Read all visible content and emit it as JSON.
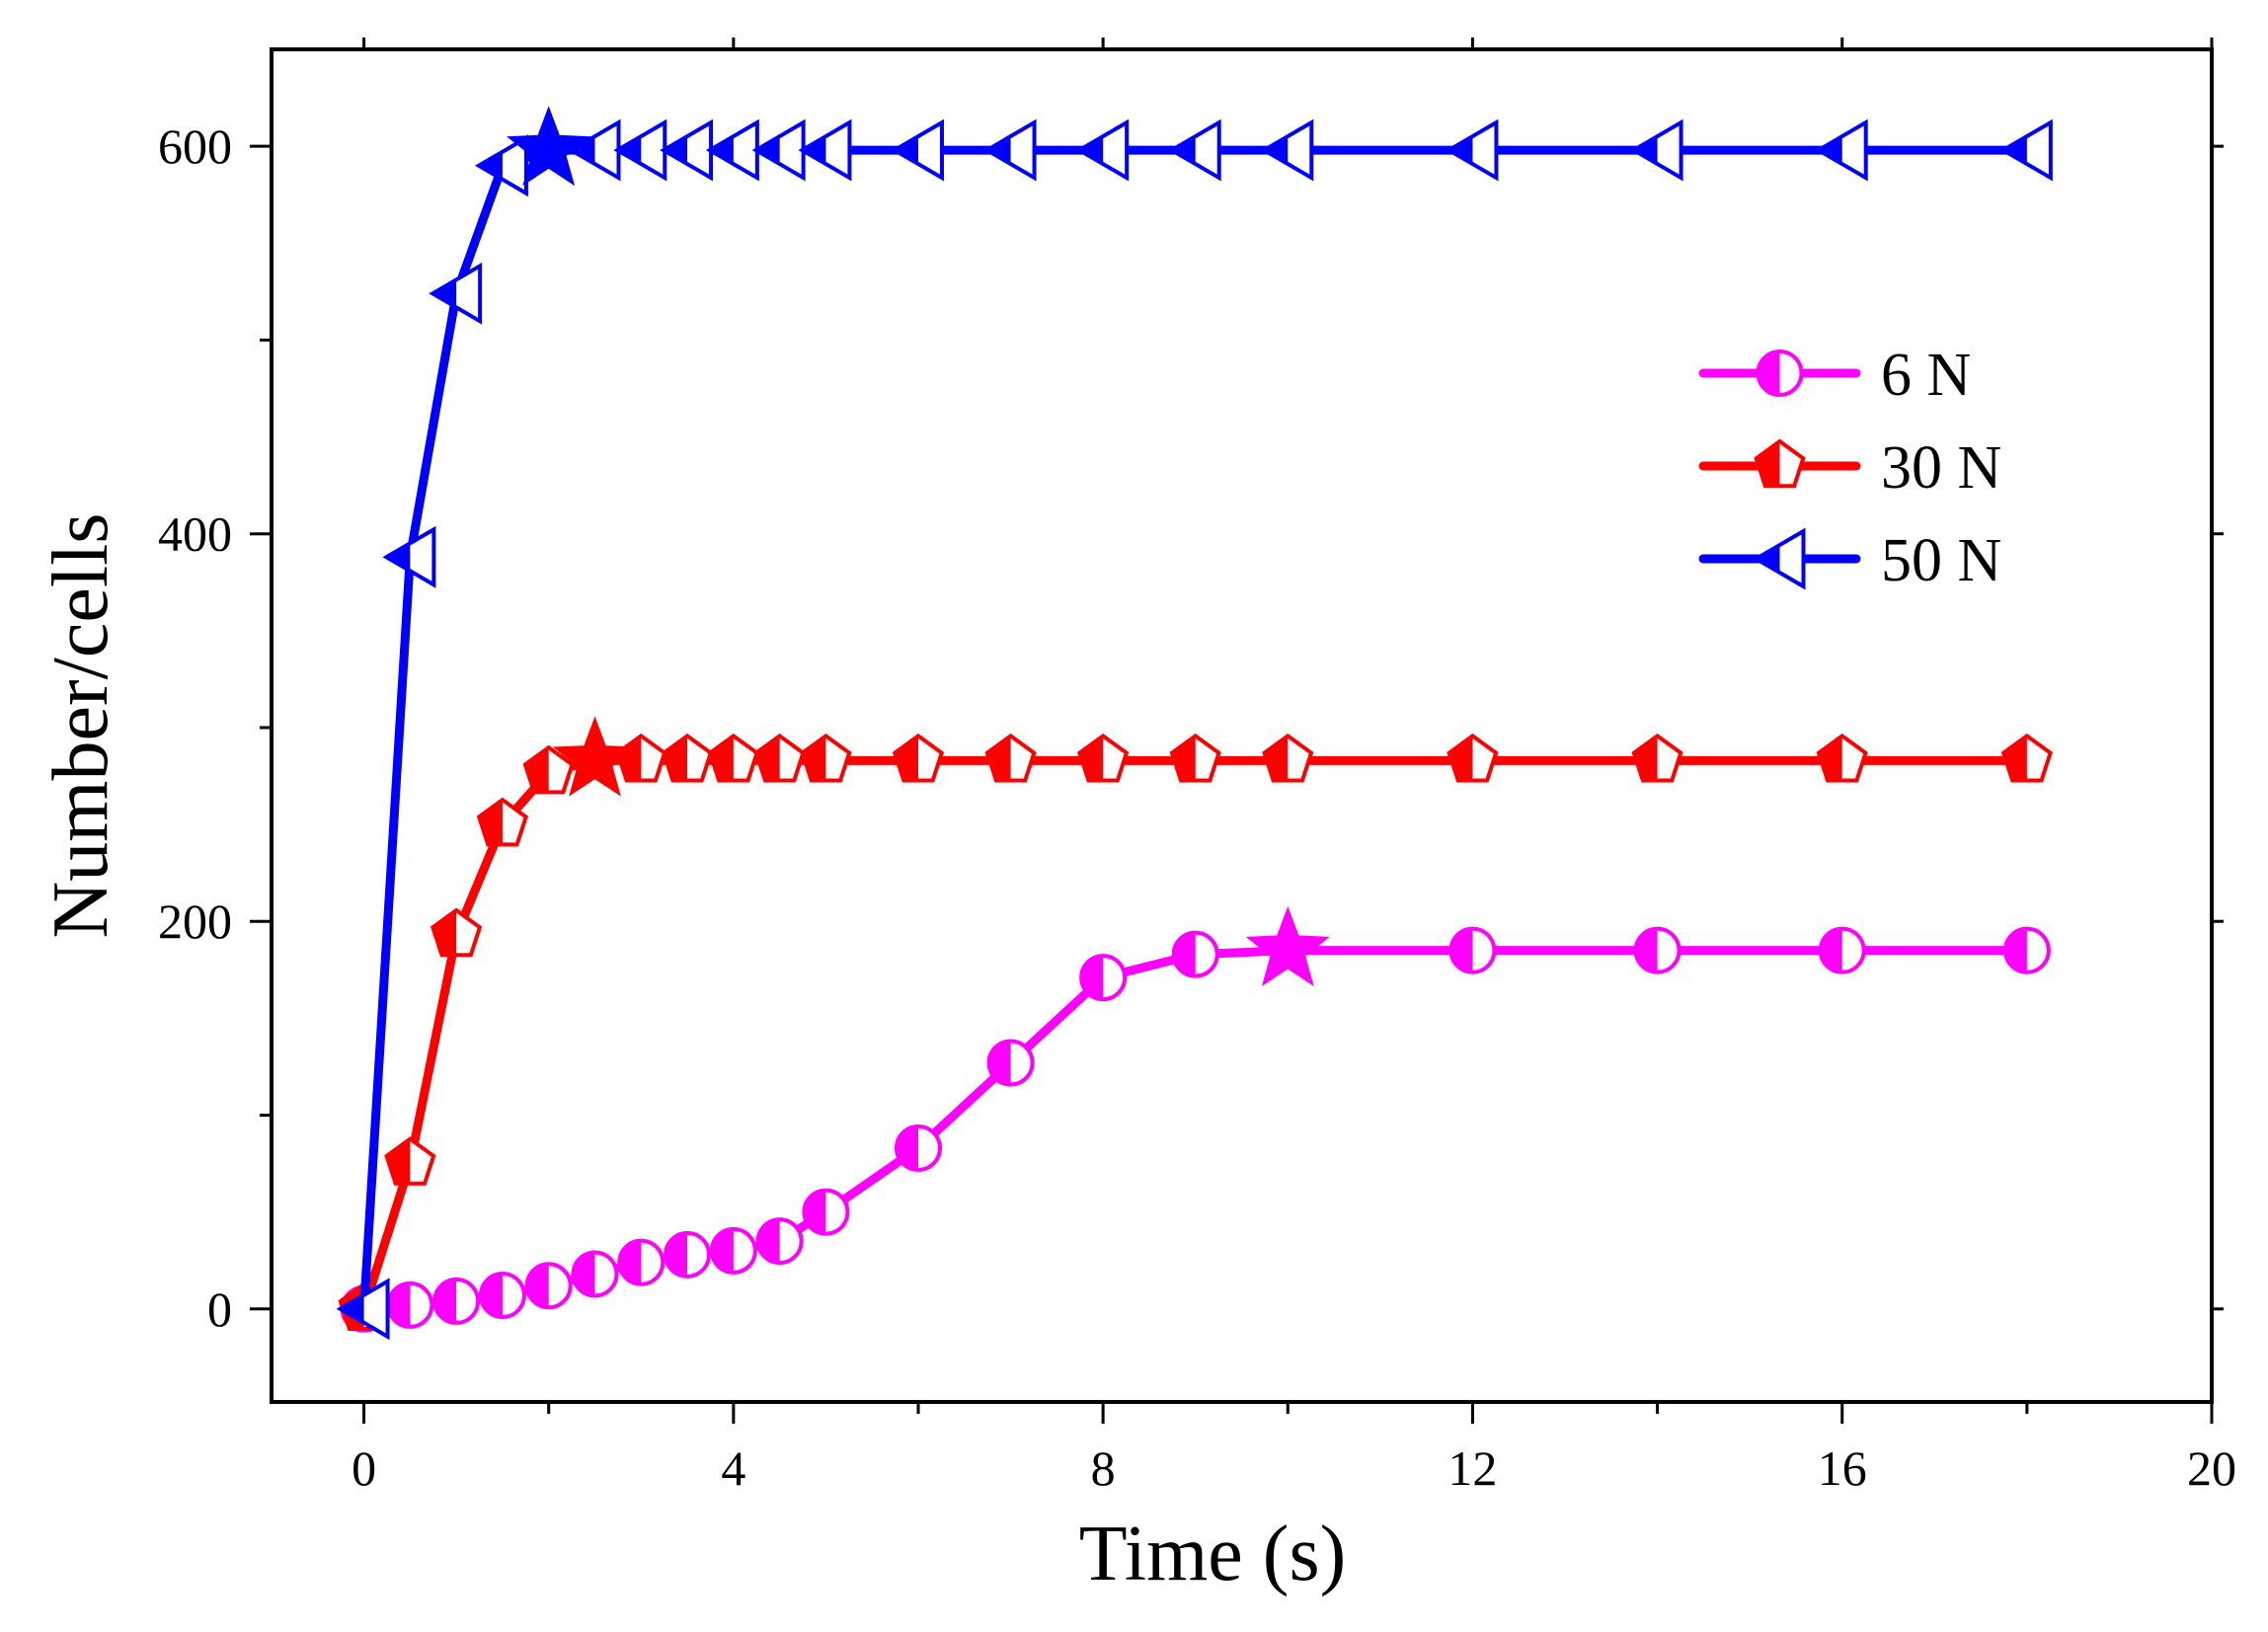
{
  "chart_data": {
    "type": "line",
    "title": "",
    "xlabel": "Time (s)",
    "ylabel": "Number/cells",
    "xlim": [
      -1.0,
      20
    ],
    "ylim": [
      -48,
      650
    ],
    "xticks": [
      0,
      4,
      8,
      12,
      16,
      20
    ],
    "yticks": [
      0,
      200,
      400,
      600
    ],
    "x_tick_labels": [
      "0",
      "4",
      "8",
      "12",
      "16",
      "20"
    ],
    "y_tick_labels": [
      "0",
      "200",
      "400",
      "600"
    ],
    "grid": false,
    "legend_position": "right-upper",
    "series": [
      {
        "name": "6 N",
        "color": "#ff00ff",
        "marker": "half-circle",
        "x": [
          0,
          0.5,
          1,
          1.5,
          2,
          2.5,
          3,
          3.5,
          4,
          4.5,
          5,
          6,
          7,
          8,
          9,
          10,
          12,
          14,
          16,
          18
        ],
        "y": [
          0,
          2,
          4,
          7,
          12,
          18,
          24,
          28,
          30,
          35,
          50,
          83,
          127,
          171,
          183,
          185,
          185,
          185,
          185,
          185
        ],
        "star_at_x": 10
      },
      {
        "name": "30 N",
        "color": "#ff0000",
        "marker": "half-pentagon",
        "x": [
          0,
          0.5,
          1,
          1.5,
          2,
          2.5,
          3,
          3.5,
          4,
          4.5,
          5,
          6,
          7,
          8,
          9,
          10,
          12,
          14,
          16,
          18
        ],
        "y": [
          0,
          75,
          193,
          250,
          277,
          283,
          283,
          283,
          283,
          283,
          283,
          283,
          283,
          283,
          283,
          283,
          283,
          283,
          283,
          283
        ],
        "star_at_x": 2.5
      },
      {
        "name": "50 N",
        "color": "#0000ff",
        "marker": "half-left-triangle",
        "x": [
          0,
          0.5,
          1,
          1.5,
          2,
          2.5,
          3,
          3.5,
          4,
          4.5,
          5,
          6,
          7,
          8,
          9,
          10,
          12,
          14,
          16,
          18
        ],
        "y": [
          0,
          388,
          524,
          590,
          598,
          598,
          598,
          598,
          598,
          598,
          598,
          598,
          598,
          598,
          598,
          598,
          598,
          598,
          598,
          598
        ],
        "star_at_x": 2
      }
    ]
  }
}
